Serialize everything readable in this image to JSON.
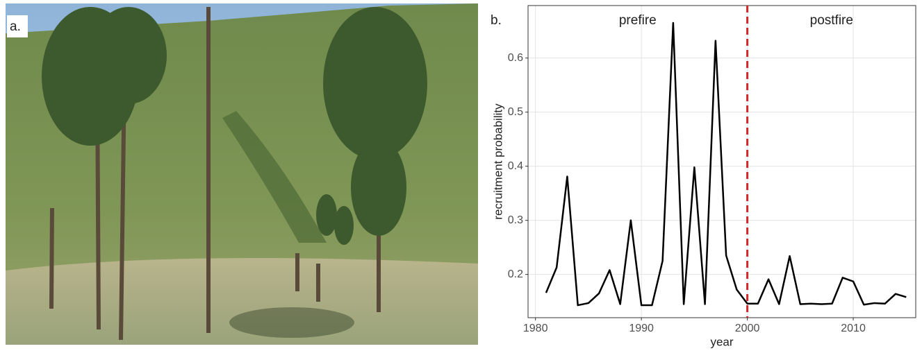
{
  "panel_a": {
    "label": "a."
  },
  "chart_data": {
    "type": "line",
    "panel_label": "b.",
    "x": [
      1981,
      1982,
      1983,
      1984,
      1985,
      1986,
      1987,
      1988,
      1989,
      1990,
      1991,
      1992,
      1993,
      1994,
      1995,
      1996,
      1997,
      1998,
      1999,
      2000,
      2001,
      2002,
      2003,
      2004,
      2005,
      2006,
      2007,
      2008,
      2009,
      2010,
      2011,
      2012,
      2013,
      2014,
      2015
    ],
    "values": [
      0.166,
      0.213,
      0.381,
      0.143,
      0.147,
      0.165,
      0.208,
      0.145,
      0.3,
      0.143,
      0.143,
      0.225,
      0.665,
      0.145,
      0.398,
      0.145,
      0.632,
      0.235,
      0.172,
      0.146,
      0.146,
      0.191,
      0.145,
      0.234,
      0.145,
      0.146,
      0.145,
      0.146,
      0.194,
      0.187,
      0.144,
      0.147,
      0.146,
      0.164,
      0.158
    ],
    "color": "#000000",
    "xlabel": "year",
    "ylabel": "recruitment probability",
    "xlim": [
      1979.3,
      2015.9
    ],
    "ylim": [
      0.12,
      0.697
    ],
    "xticks": [
      1980,
      1990,
      2000,
      2010
    ],
    "yticks": [
      0.2,
      0.3,
      0.4,
      0.5,
      0.6
    ],
    "grid": true,
    "vline": {
      "value": 2000,
      "color": "#d62728"
    },
    "annotations": [
      "prefire",
      "postfire"
    ]
  }
}
